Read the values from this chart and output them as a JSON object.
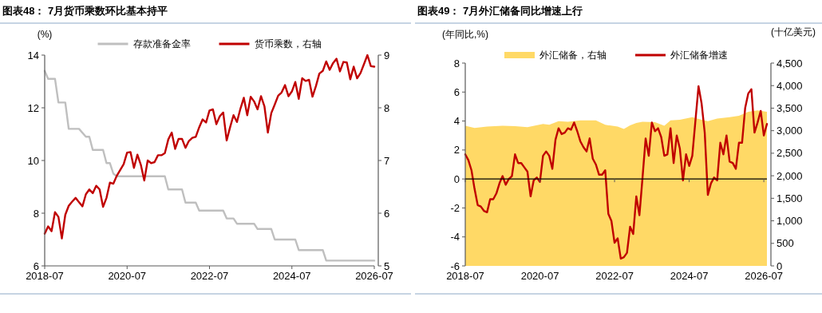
{
  "chart_data": [
    {
      "type": "line",
      "title": "图表48： 7月货币乘数环比基本持平",
      "ylabel": "(%)",
      "legend": "top",
      "x": [
        "2018-07",
        "2018-08",
        "2018-09",
        "2018-10",
        "2018-11",
        "2018-12",
        "2019-01",
        "2019-02",
        "2019-03",
        "2019-04",
        "2019-05",
        "2019-06",
        "2019-07",
        "2019-08",
        "2019-09",
        "2019-10",
        "2019-11",
        "2019-12",
        "2020-01",
        "2020-02",
        "2020-03",
        "2020-04",
        "2020-05",
        "2020-06",
        "2020-07",
        "2020-08",
        "2020-09",
        "2020-10",
        "2020-11",
        "2020-12",
        "2021-01",
        "2021-02",
        "2021-03",
        "2021-04",
        "2021-05",
        "2021-06",
        "2021-07",
        "2021-08",
        "2021-09",
        "2021-10",
        "2021-11",
        "2021-12",
        "2022-01",
        "2022-02",
        "2022-03",
        "2022-04",
        "2022-05",
        "2022-06",
        "2022-07",
        "2022-08",
        "2022-09",
        "2022-10",
        "2022-11",
        "2022-12",
        "2023-01",
        "2023-02",
        "2023-03",
        "2023-04",
        "2023-05",
        "2023-06",
        "2023-07",
        "2023-08",
        "2023-09",
        "2023-10",
        "2023-11",
        "2023-12",
        "2024-01",
        "2024-02",
        "2024-03",
        "2024-04",
        "2024-05",
        "2024-06",
        "2024-07",
        "2024-08",
        "2024-09",
        "2024-10",
        "2024-11",
        "2024-12",
        "2025-01",
        "2025-02",
        "2025-03",
        "2025-04",
        "2025-05",
        "2025-06",
        "2025-07",
        "2025-08",
        "2025-09",
        "2025-10",
        "2025-11",
        "2025-12",
        "2026-01",
        "2026-02",
        "2026-03",
        "2026-04",
        "2026-05",
        "2026-06",
        "2026-07"
      ],
      "xlim": [
        "2018-07",
        "2026-07"
      ],
      "xticks": [
        "2018-07",
        "2020-07",
        "2022-07",
        "2024-07",
        "2026-07"
      ],
      "ylim": [
        6,
        14
      ],
      "yticks": [
        6,
        8,
        10,
        12,
        14
      ],
      "y2lim": [
        5,
        9
      ],
      "y2ticks": [
        5,
        6,
        7,
        8,
        9
      ],
      "series": [
        {
          "name": "存款准备金率",
          "color": "#bfbfbf",
          "x": [
            "2018-07",
            "2018-08",
            "2018-10",
            "2018-11",
            "2019-01",
            "2019-02",
            "2019-05",
            "2019-07",
            "2019-08",
            "2019-09",
            "2019-12",
            "2020-01",
            "2020-02",
            "2020-03",
            "2020-04",
            "2021-06",
            "2021-07",
            "2021-11",
            "2021-12",
            "2022-03",
            "2022-04",
            "2022-11",
            "2022-12",
            "2023-02",
            "2023-03",
            "2023-08",
            "2023-09",
            "2024-01",
            "2024-02",
            "2024-08",
            "2024-09",
            "2025-04",
            "2025-05",
            "2026-07"
          ],
          "values": [
            13.4,
            13.1,
            13.1,
            12.2,
            12.2,
            11.2,
            11.2,
            10.9,
            10.9,
            10.4,
            10.4,
            9.9,
            9.9,
            9.5,
            9.4,
            9.4,
            8.9,
            8.9,
            8.4,
            8.4,
            8.1,
            8.1,
            7.8,
            7.8,
            7.6,
            7.6,
            7.4,
            7.4,
            7.0,
            7.0,
            6.6,
            6.6,
            6.2,
            6.2
          ]
        },
        {
          "name": "货币乘数，右轴",
          "color": "#c00000",
          "axis": "y2",
          "values": [
            5.61,
            5.75,
            5.66,
            6.02,
            5.93,
            5.52,
            5.97,
            6.14,
            6.22,
            6.29,
            6.21,
            6.13,
            6.36,
            6.45,
            6.38,
            6.52,
            6.45,
            6.12,
            6.29,
            6.58,
            6.56,
            6.71,
            6.82,
            6.93,
            7.15,
            7.16,
            6.86,
            7.11,
            6.92,
            6.62,
            7.0,
            6.95,
            6.97,
            7.1,
            7.1,
            7.14,
            7.4,
            7.53,
            7.22,
            7.41,
            7.41,
            7.24,
            7.37,
            7.43,
            7.45,
            7.63,
            7.78,
            7.72,
            7.95,
            7.97,
            7.69,
            7.84,
            7.91,
            7.38,
            7.63,
            7.86,
            7.73,
            7.98,
            8.19,
            7.86,
            8.21,
            8.12,
            7.97,
            8.22,
            8.03,
            7.53,
            7.9,
            8.06,
            8.23,
            8.29,
            8.43,
            8.22,
            8.31,
            8.49,
            8.17,
            8.56,
            8.51,
            8.53,
            8.21,
            8.41,
            8.65,
            8.7,
            8.88,
            8.72,
            8.85,
            8.93,
            8.69,
            8.87,
            8.86,
            8.54,
            8.78,
            8.56,
            8.66,
            8.83,
            9.0,
            8.79,
            8.78
          ]
        }
      ]
    },
    {
      "type": "line",
      "title": "图表49： 7月外汇储备同比增速上行",
      "ylabel": "(年同比,%)",
      "y2label": "(十亿美元)",
      "legend": "top",
      "x": [
        "2018-07",
        "2018-08",
        "2018-09",
        "2018-10",
        "2018-11",
        "2018-12",
        "2019-01",
        "2019-02",
        "2019-03",
        "2019-04",
        "2019-05",
        "2019-06",
        "2019-07",
        "2019-08",
        "2019-09",
        "2019-10",
        "2019-11",
        "2019-12",
        "2020-01",
        "2020-02",
        "2020-03",
        "2020-04",
        "2020-05",
        "2020-06",
        "2020-07",
        "2020-08",
        "2020-09",
        "2020-10",
        "2020-11",
        "2020-12",
        "2021-01",
        "2021-02",
        "2021-03",
        "2021-04",
        "2021-05",
        "2021-06",
        "2021-07",
        "2021-08",
        "2021-09",
        "2021-10",
        "2021-11",
        "2021-12",
        "2022-01",
        "2022-02",
        "2022-03",
        "2022-04",
        "2022-05",
        "2022-06",
        "2022-07",
        "2022-08",
        "2022-09",
        "2022-10",
        "2022-11",
        "2022-12",
        "2023-01",
        "2023-02",
        "2023-03",
        "2023-04",
        "2023-05",
        "2023-06",
        "2023-07",
        "2023-08",
        "2023-09",
        "2023-10",
        "2023-11",
        "2023-12",
        "2024-01",
        "2024-02",
        "2024-03",
        "2024-04",
        "2024-05",
        "2024-06",
        "2024-07",
        "2024-08",
        "2024-09",
        "2024-10",
        "2024-11",
        "2024-12",
        "2025-01",
        "2025-02",
        "2025-03",
        "2025-04",
        "2025-05",
        "2025-06",
        "2025-07",
        "2025-08",
        "2025-09",
        "2025-10",
        "2025-11",
        "2025-12",
        "2026-01",
        "2026-02",
        "2026-03",
        "2026-04",
        "2026-05",
        "2026-06",
        "2026-07",
        "2026-08"
      ],
      "xlim": [
        "2018-07",
        "2026-08"
      ],
      "xticks": [
        "2018-07",
        "2020-07",
        "2022-07",
        "2024-07",
        "2026-07"
      ],
      "ylim": [
        -6,
        8
      ],
      "yticks": [
        -6,
        -4,
        -2,
        0,
        2,
        4,
        6,
        8
      ],
      "y2lim": [
        0,
        4500
      ],
      "y2ticks": [
        0,
        500,
        {
          "value": 1000,
          "label": "1,000"
        },
        {
          "value": 1500,
          "label": "1,500"
        },
        {
          "value": 2000,
          "label": "2,000"
        },
        {
          "value": 2500,
          "label": "2,500"
        },
        {
          "value": 3000,
          "label": "3,000"
        },
        {
          "value": 3500,
          "label": "3,500"
        },
        {
          "value": 4000,
          "label": "4,000"
        },
        {
          "value": 4500,
          "label": "4,500"
        }
      ],
      "series": [
        {
          "name": "外汇储备，右轴",
          "type": "area",
          "axis": "y2",
          "color": "#ffd966",
          "x": [
            "2018-07",
            "2018-10",
            "2019-02",
            "2019-07",
            "2019-11",
            "2020-03",
            "2020-08",
            "2020-10",
            "2021-01",
            "2021-04",
            "2021-08",
            "2022-01",
            "2022-04",
            "2022-08",
            "2022-10",
            "2022-12",
            "2023-02",
            "2023-04",
            "2023-08",
            "2023-11",
            "2024-01",
            "2024-04",
            "2024-08",
            "2024-11",
            "2025-01",
            "2025-04",
            "2025-08",
            "2025-11",
            "2026-02",
            "2026-05",
            "2026-08"
          ],
          "values": [
            3110,
            3060,
            3090,
            3110,
            3100,
            3080,
            3150,
            3130,
            3210,
            3200,
            3230,
            3230,
            3130,
            3090,
            3040,
            3120,
            3170,
            3200,
            3190,
            3110,
            3230,
            3240,
            3300,
            3240,
            3210,
            3270,
            3300,
            3330,
            3420,
            3450,
            3420
          ]
        },
        {
          "name": "外汇储备增速",
          "color": "#c00000",
          "values": [
            1.7,
            1.3,
            0.6,
            -0.7,
            -1.8,
            -1.9,
            -2.2,
            -2.3,
            -1.4,
            -1.4,
            -1.0,
            -0.3,
            0.2,
            -0.4,
            0.0,
            0.2,
            1.7,
            1.1,
            1.1,
            0.8,
            0.5,
            -1.2,
            -0.1,
            0.1,
            -0.2,
            1.6,
            1.9,
            1.6,
            0.7,
            2.7,
            3.5,
            3.1,
            3.2,
            3.5,
            3.4,
            3.9,
            3.3,
            2.6,
            2.2,
            1.9,
            2.8,
            1.4,
            1.0,
            0.3,
            0.3,
            0.6,
            -2.4,
            -2.9,
            -4.4,
            -4.1,
            -5.5,
            -5.4,
            -5.1,
            -3.3,
            -3.8,
            -1.2,
            -2.5,
            0.1,
            2.8,
            1.6,
            3.9,
            3.3,
            3.5,
            2.9,
            1.6,
            1.7,
            3.5,
            1.1,
            3.0,
            2.1,
            -0.1,
            1.7,
            0.9,
            1.6,
            4.0,
            6.4,
            5.2,
            3.2,
            -1.1,
            -0.3,
            0.1,
            -0.1,
            2.5,
            1.7,
            3.0,
            1.2,
            1.1,
            0.7,
            2.5,
            2.5,
            4.9,
            5.9,
            6.2,
            3.2,
            3.9,
            4.7,
            3.0,
            3.8
          ]
        }
      ]
    }
  ]
}
